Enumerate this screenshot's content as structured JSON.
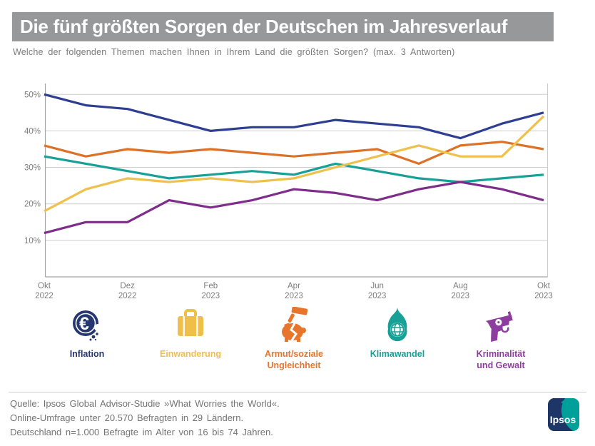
{
  "title": "Die fünf größten Sorgen der Deutschen im Jahresverlauf",
  "subtitle": "Welche der folgenden Themen machen Ihnen in Ihrem Land die größten Sorgen? (max. 3 Antworten)",
  "chart_data": {
    "type": "line",
    "months": [
      "Okt 2022",
      "Nov 2022",
      "Dez 2022",
      "Jan 2023",
      "Feb 2023",
      "Mär 2023",
      "Apr 2023",
      "Mai 2023",
      "Jun 2023",
      "Jul 2023",
      "Aug 2023",
      "Sep 2023",
      "Okt 2023"
    ],
    "x_tick_labels": [
      {
        "month": "Okt",
        "year": "2022",
        "index": 0
      },
      {
        "month": "Dez",
        "year": "2022",
        "index": 2
      },
      {
        "month": "Feb",
        "year": "2023",
        "index": 4
      },
      {
        "month": "Apr",
        "year": "2023",
        "index": 6
      },
      {
        "month": "Jun",
        "year": "2023",
        "index": 8
      },
      {
        "month": "Aug",
        "year": "2023",
        "index": 10
      },
      {
        "month": "Okt",
        "year": "2023",
        "index": 12
      }
    ],
    "yticks": [
      {
        "value": 10,
        "label": "10%"
      },
      {
        "value": 20,
        "label": "20%"
      },
      {
        "value": 30,
        "label": "30%"
      },
      {
        "value": 40,
        "label": "40%"
      },
      {
        "value": 50,
        "label": "50%"
      }
    ],
    "ylim": [
      0,
      53
    ],
    "grid": true,
    "legend_position": "bottom",
    "series": [
      {
        "name": "Inflation",
        "color": "#2e3e92",
        "values": [
          50,
          47,
          46,
          43,
          40,
          41,
          41,
          43,
          42,
          41,
          38,
          42,
          45
        ]
      },
      {
        "name": "Einwanderung",
        "color": "#edc14b",
        "values": [
          18,
          24,
          27,
          26,
          27,
          26,
          27,
          30,
          33,
          36,
          33,
          33,
          44
        ]
      },
      {
        "name": "Armut/soziale Ungleichheit",
        "color": "#dd7127",
        "values": [
          36,
          33,
          35,
          34,
          35,
          34,
          33,
          34,
          35,
          31,
          36,
          37,
          35
        ]
      },
      {
        "name": "Klimawandel",
        "color": "#16a096",
        "values": [
          33,
          31,
          29,
          27,
          28,
          29,
          28,
          31,
          29,
          27,
          26,
          27,
          28
        ]
      },
      {
        "name": "Kriminalität und Gewalt",
        "color": "#7e2d8a",
        "values": [
          12,
          15,
          15,
          21,
          19,
          21,
          24,
          23,
          21,
          24,
          26,
          24,
          21
        ]
      }
    ],
    "draw_order": [
      3,
      2,
      4,
      1,
      0
    ]
  },
  "legend": [
    {
      "label": "Inflation",
      "icon": "crumbling-euro-coin",
      "color": "#24376f"
    },
    {
      "label": "Einwanderung",
      "icon": "suitcase",
      "color": "#efbf4a"
    },
    {
      "label": "Armut/soziale\nUngleichheit",
      "icon": "gavel-broken-piggy-bank",
      "color": "#e7752c"
    },
    {
      "label": "Klimawandel",
      "icon": "flame-globe",
      "color": "#16a096"
    },
    {
      "label": "Kriminalität\nund Gewalt",
      "icon": "revolver",
      "color": "#8d3d9e"
    }
  ],
  "footer": {
    "lines": [
      "Quelle: Ipsos Global Advisor-Studie »What Worries the World«.",
      "Online-Umfrage unter 20.570 Befragten in 29 Ländern.",
      "Deutschland n=1.000 Befragte im Alter von 16 bis 74 Jahren."
    ],
    "logo_text": "Ipsos"
  },
  "colors": {
    "title_bar_gray": "#97989a",
    "grid_line": "#cdcdcd",
    "axis_line": "#a3a3a3",
    "tick_text": "#7d7d7d",
    "footer_text": "#747474",
    "logo_navy": "#1d3667",
    "logo_teal": "#00a09a"
  }
}
